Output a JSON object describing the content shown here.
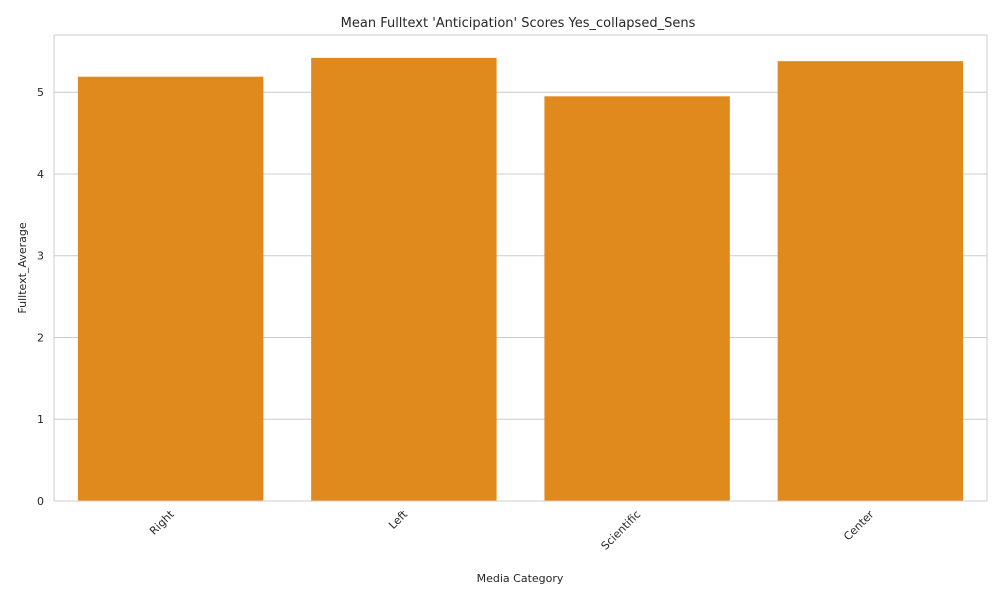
{
  "chart_data": {
    "type": "bar",
    "title": "Mean Fulltext 'Anticipation' Scores Yes_collapsed_Sens",
    "xlabel": "Media Category",
    "ylabel": "Fulltext_Average",
    "categories": [
      "Right",
      "Left",
      "Scientific",
      "Center"
    ],
    "values": [
      5.19,
      5.42,
      4.95,
      5.38
    ],
    "ylim": [
      0,
      5.7
    ],
    "yticks": [
      0,
      1,
      2,
      3,
      4,
      5
    ],
    "grid": true,
    "bar_color": "#e08a1e",
    "legend": "none"
  }
}
